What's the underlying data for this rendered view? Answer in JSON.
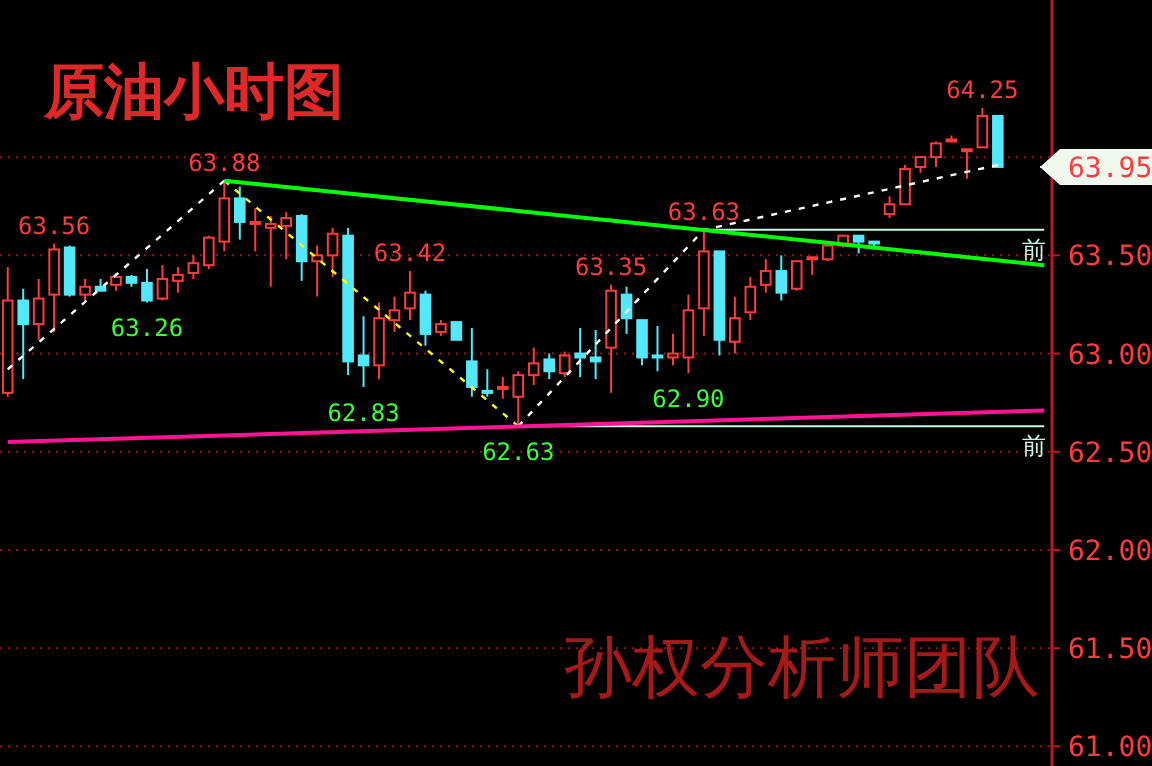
{
  "chart_data": {
    "type": "candlestick",
    "title": "原油小时图",
    "categories": [
      null,
      null,
      null,
      null,
      null,
      null,
      null,
      null,
      null,
      null,
      null,
      null,
      null,
      null,
      null,
      null,
      null,
      null,
      null,
      null,
      null,
      null,
      null,
      null,
      null,
      null,
      null,
      null,
      null,
      null,
      null,
      null,
      null,
      null,
      null,
      null,
      null,
      null,
      null,
      null,
      null,
      null,
      null,
      null,
      null,
      null,
      null,
      null,
      null,
      null,
      null,
      null,
      null,
      null,
      null,
      null,
      null,
      null,
      null,
      null,
      null,
      null,
      null,
      null,
      null,
      null,
      null,
      null
    ],
    "ohlc": [
      [
        62.8,
        63.44,
        62.78,
        63.27
      ],
      [
        63.27,
        63.33,
        62.87,
        63.15
      ],
      [
        63.15,
        63.38,
        63.07,
        63.28
      ],
      [
        63.3,
        63.56,
        63.11,
        63.53
      ],
      [
        63.54,
        63.55,
        63.29,
        63.3
      ],
      [
        63.3,
        63.38,
        63.27,
        63.34
      ],
      [
        63.34,
        63.38,
        63.32,
        63.32
      ],
      [
        63.35,
        63.41,
        63.32,
        63.39
      ],
      [
        63.39,
        63.4,
        63.34,
        63.36
      ],
      [
        63.36,
        63.43,
        63.26,
        63.27
      ],
      [
        63.28,
        63.45,
        63.27,
        63.38
      ],
      [
        63.37,
        63.44,
        63.31,
        63.4
      ],
      [
        63.41,
        63.5,
        63.38,
        63.46
      ],
      [
        63.45,
        63.6,
        63.43,
        63.59
      ],
      [
        63.57,
        63.88,
        63.52,
        63.79
      ],
      [
        63.79,
        63.85,
        63.58,
        63.67
      ],
      [
        63.66,
        63.74,
        63.52,
        63.67
      ],
      [
        63.64,
        63.7,
        63.34,
        63.66
      ],
      [
        63.65,
        63.72,
        63.48,
        63.69
      ],
      [
        63.7,
        63.71,
        63.37,
        63.47
      ],
      [
        63.47,
        63.55,
        63.29,
        63.5
      ],
      [
        63.5,
        63.64,
        63.39,
        63.61
      ],
      [
        63.6,
        63.64,
        62.89,
        62.96
      ],
      [
        62.99,
        63.19,
        62.83,
        62.94
      ],
      [
        62.94,
        63.26,
        62.87,
        63.18
      ],
      [
        63.17,
        63.29,
        63.11,
        63.22
      ],
      [
        63.23,
        63.42,
        63.17,
        63.31
      ],
      [
        63.3,
        63.32,
        63.04,
        63.1
      ],
      [
        63.11,
        63.17,
        63.09,
        63.15
      ],
      [
        63.16,
        63.16,
        63.07,
        63.07
      ],
      [
        62.96,
        63.13,
        62.78,
        62.83
      ],
      [
        62.81,
        62.92,
        62.78,
        62.8
      ],
      [
        62.82,
        62.88,
        62.77,
        62.83
      ],
      [
        62.78,
        62.91,
        62.63,
        62.89
      ],
      [
        62.89,
        63.03,
        62.84,
        62.95
      ],
      [
        62.97,
        63.0,
        62.87,
        62.91
      ],
      [
        62.9,
        63.01,
        62.88,
        62.99
      ],
      [
        63.0,
        63.13,
        62.88,
        62.98
      ],
      [
        62.98,
        63.12,
        62.87,
        62.96
      ],
      [
        63.03,
        63.35,
        62.8,
        63.32
      ],
      [
        63.3,
        63.34,
        63.1,
        63.18
      ],
      [
        63.17,
        63.17,
        62.94,
        62.98
      ],
      [
        62.99,
        63.14,
        62.91,
        62.98
      ],
      [
        62.98,
        63.1,
        62.94,
        63.0
      ],
      [
        62.98,
        63.3,
        62.9,
        63.22
      ],
      [
        63.23,
        63.63,
        63.09,
        63.52
      ],
      [
        63.52,
        63.52,
        62.99,
        63.07
      ],
      [
        63.06,
        63.29,
        63.0,
        63.18
      ],
      [
        63.21,
        63.39,
        63.17,
        63.34
      ],
      [
        63.35,
        63.48,
        63.31,
        63.42
      ],
      [
        63.42,
        63.5,
        63.27,
        63.31
      ],
      [
        63.33,
        63.47,
        63.32,
        63.47
      ],
      [
        63.48,
        63.49,
        63.4,
        63.49
      ],
      [
        63.48,
        63.55,
        63.47,
        63.55
      ],
      [
        63.55,
        63.6,
        63.54,
        63.6
      ],
      [
        63.6,
        63.6,
        63.51,
        63.57
      ],
      [
        63.57,
        63.57,
        63.53,
        63.56
      ],
      [
        63.71,
        63.8,
        63.69,
        63.76
      ],
      [
        63.76,
        63.96,
        63.76,
        63.94
      ],
      [
        63.95,
        64.0,
        63.92,
        64.0
      ],
      [
        64.0,
        64.08,
        63.95,
        64.07
      ],
      [
        64.08,
        64.11,
        64.08,
        64.09
      ],
      [
        64.03,
        64.04,
        63.89,
        64.04
      ],
      [
        64.05,
        64.25,
        64.05,
        64.21
      ],
      [
        64.21,
        64.21,
        63.95,
        63.95
      ],
      null,
      null,
      null
    ],
    "colors": [
      "#ff3c3c",
      "#54e8fc",
      "#ff3c3c",
      "#ff3c3c",
      "#54e8fc",
      "#ff3c3c",
      "#54e8fc",
      "#ff3c3c",
      "#54e8fc",
      "#54e8fc",
      "#ff3c3c",
      "#ff3c3c",
      "#ff3c3c",
      "#ff3c3c",
      "#ff3c3c",
      "#54e8fc",
      "#ff3c3c",
      "#ff3c3c",
      "#ff3c3c",
      "#54e8fc",
      "#ff3c3c",
      "#ff3c3c",
      "#54e8fc",
      "#54e8fc",
      "#ff3c3c",
      "#ff3c3c",
      "#ff3c3c",
      "#54e8fc",
      "#ff3c3c",
      "#54e8fc",
      "#54e8fc",
      "#54e8fc",
      "#ff3c3c",
      "#ff3c3c",
      "#ff3c3c",
      "#54e8fc",
      "#ff3c3c",
      "#54e8fc",
      "#54e8fc",
      "#ff3c3c",
      "#54e8fc",
      "#54e8fc",
      "#54e8fc",
      "#ff3c3c",
      "#ff3c3c",
      "#ff3c3c",
      "#54e8fc",
      "#ff3c3c",
      "#ff3c3c",
      "#ff3c3c",
      "#54e8fc",
      "#ff3c3c",
      "#ff3c3c",
      "#ff3c3c",
      "#ff3c3c",
      "#54e8fc",
      "#54e8fc",
      "#ff3c3c",
      "#ff3c3c",
      "#ff3c3c",
      "#ff3c3c",
      "#ff3c3c",
      "#ff3c3c",
      "#ff3c3c",
      "#54e8fc",
      null,
      null,
      null
    ],
    "series": [
      {
        "type": "line",
        "color": "#ffffff",
        "line_style": "dashed",
        "values": [
          62.92,
          null,
          null,
          null,
          null,
          null,
          null,
          null,
          null,
          null,
          null,
          null,
          null,
          null,
          63.88,
          null,
          null,
          null,
          null,
          null,
          null,
          null,
          null,
          null,
          null,
          null,
          null,
          null,
          null,
          null,
          null,
          null,
          null,
          null,
          null,
          null,
          null,
          null,
          null,
          null,
          null,
          null,
          null,
          null,
          null,
          null,
          null,
          null,
          null,
          null,
          null,
          null,
          null,
          null,
          null,
          null,
          null,
          null,
          null,
          null,
          null,
          null,
          null,
          null,
          null,
          null,
          null,
          null
        ]
      },
      {
        "type": "line",
        "color": "#ffff00",
        "line_style": "dashed",
        "values": [
          null,
          null,
          null,
          null,
          null,
          null,
          null,
          null,
          null,
          null,
          null,
          null,
          null,
          null,
          63.88,
          null,
          null,
          null,
          null,
          null,
          null,
          null,
          null,
          null,
          null,
          null,
          null,
          null,
          null,
          null,
          null,
          null,
          null,
          62.63,
          null,
          null,
          null,
          null,
          null,
          null,
          null,
          null,
          null,
          null,
          null,
          null,
          null,
          null,
          null,
          null,
          null,
          null,
          null,
          null,
          null,
          null,
          null,
          null,
          null,
          null,
          null,
          null,
          null,
          null,
          null,
          null,
          null,
          null
        ]
      },
      {
        "type": "line",
        "color": "#ffffff",
        "line_style": "dashed",
        "values": [
          null,
          null,
          null,
          null,
          null,
          null,
          null,
          null,
          null,
          null,
          null,
          null,
          null,
          null,
          null,
          null,
          null,
          null,
          null,
          null,
          null,
          null,
          null,
          null,
          null,
          null,
          null,
          null,
          null,
          null,
          null,
          null,
          null,
          62.63,
          null,
          null,
          null,
          null,
          null,
          null,
          null,
          null,
          null,
          null,
          null,
          63.63,
          null,
          null,
          null,
          null,
          null,
          null,
          null,
          null,
          null,
          null,
          null,
          null,
          null,
          null,
          null,
          null,
          null,
          null,
          63.96,
          null,
          null,
          null
        ]
      },
      {
        "type": "line",
        "color": "#00ff00",
        "line_style": "solid",
        "values": [
          null,
          null,
          null,
          null,
          null,
          null,
          null,
          null,
          null,
          null,
          null,
          null,
          null,
          null,
          63.88,
          null,
          null,
          null,
          null,
          null,
          null,
          null,
          null,
          null,
          null,
          null,
          null,
          null,
          null,
          null,
          null,
          null,
          null,
          null,
          null,
          null,
          null,
          null,
          null,
          null,
          null,
          null,
          null,
          null,
          null,
          null,
          null,
          null,
          null,
          null,
          null,
          null,
          null,
          null,
          null,
          null,
          null,
          null,
          null,
          null,
          null,
          null,
          null,
          null,
          null,
          null,
          null,
          63.45
        ]
      },
      {
        "type": "line",
        "color": "#ff1493",
        "line_style": "solid",
        "values": [
          62.55,
          null,
          null,
          null,
          null,
          null,
          null,
          null,
          null,
          null,
          null,
          null,
          null,
          null,
          null,
          null,
          null,
          null,
          null,
          null,
          null,
          null,
          null,
          null,
          null,
          null,
          null,
          null,
          null,
          null,
          null,
          null,
          null,
          null,
          null,
          null,
          null,
          null,
          null,
          null,
          null,
          null,
          null,
          null,
          null,
          null,
          null,
          null,
          null,
          null,
          null,
          null,
          null,
          null,
          null,
          null,
          null,
          null,
          null,
          null,
          null,
          null,
          null,
          null,
          null,
          null,
          null,
          62.71
        ]
      }
    ],
    "ref_lines": [
      {
        "axis": "y",
        "value": 63.63,
        "label": "前",
        "color": "#c8f5e6",
        "line_style": "solid"
      },
      {
        "axis": "y",
        "value": 62.63,
        "label": "前",
        "color": "#c8f5e6",
        "line_style": "solid"
      },
      {
        "axis": "y",
        "value": 63.95,
        "label": "63.95",
        "color": "#f0f8f0",
        "line_style": "solid"
      }
    ],
    "annotations": [
      {
        "text": "63.56",
        "y": 63.56
      },
      {
        "text": "63.26",
        "y": 63.26
      },
      {
        "text": "63.88",
        "y": 63.88
      },
      {
        "text": "63.42",
        "y": 63.42
      },
      {
        "text": "62.83",
        "y": 62.83
      },
      {
        "text": "62.63",
        "y": 62.63
      },
      {
        "text": "63.35",
        "y": 63.35
      },
      {
        "text": "62.90",
        "y": 62.9
      },
      {
        "text": "63.63",
        "y": 63.63
      },
      {
        "text": "64.25",
        "y": 64.25
      },
      "孙权分析师团队"
    ],
    "ylim": [
      60.9,
      64.8
    ],
    "yticks": [
      {
        "value": 61,
        "label": "61.00"
      },
      {
        "value": 61.5,
        "label": "61.50"
      },
      {
        "value": 62,
        "label": "62.00"
      },
      {
        "value": 62.5,
        "label": "62.50"
      },
      {
        "value": 63,
        "label": "63.00"
      },
      {
        "value": 63.5,
        "label": "63.50"
      },
      {
        "value": 64,
        "label": null
      }
    ],
    "grid": "y"
  }
}
